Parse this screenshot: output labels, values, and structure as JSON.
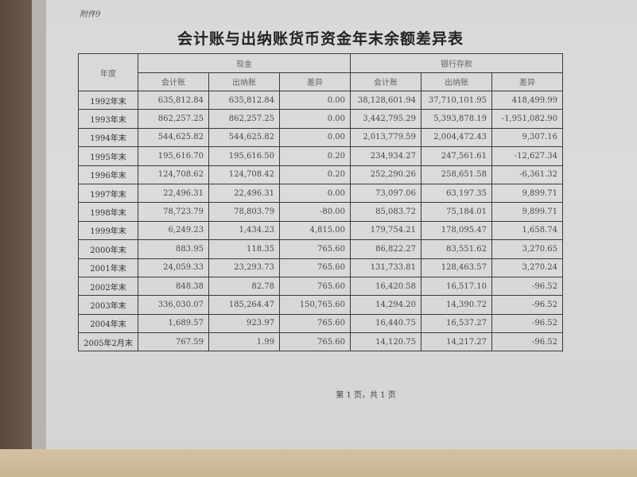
{
  "attachment_label": "附件9",
  "title": "会计账与出纳账货币资金年末余额差异表",
  "headers": {
    "year": "年度",
    "cash": "现金",
    "bank": "银行存款",
    "sub": [
      "会计账",
      "出纳账",
      "差异",
      "会计账",
      "出纳账",
      "差异"
    ]
  },
  "rows": [
    [
      "1992年末",
      "635,812.84",
      "635,812.84",
      "0.00",
      "38,128,601.94",
      "37,710,101.95",
      "418,499.99"
    ],
    [
      "1993年末",
      "862,257.25",
      "862,257.25",
      "0.00",
      "3,442,795.29",
      "5,393,878.19",
      "-1,951,082.90"
    ],
    [
      "1994年末",
      "544,625.82",
      "544,625.82",
      "0.00",
      "2,013,779.59",
      "2,004,472.43",
      "9,307.16"
    ],
    [
      "1995年末",
      "195,616.70",
      "195,616.50",
      "0.20",
      "234,934.27",
      "247,561.61",
      "-12,627.34"
    ],
    [
      "1996年末",
      "124,708.62",
      "124,708.42",
      "0.20",
      "252,290.26",
      "258,651.58",
      "-6,361.32"
    ],
    [
      "1997年末",
      "22,496.31",
      "22,496.31",
      "0.00",
      "73,097.06",
      "63,197.35",
      "9,899.71"
    ],
    [
      "1998年末",
      "78,723.79",
      "78,803.79",
      "-80.00",
      "85,083.72",
      "75,184.01",
      "9,899.71"
    ],
    [
      "1999年末",
      "6,249.23",
      "1,434.23",
      "4,815.00",
      "179,754.21",
      "178,095.47",
      "1,658.74"
    ],
    [
      "2000年末",
      "883.95",
      "118.35",
      "765.60",
      "86,822.27",
      "83,551.62",
      "3,270.65"
    ],
    [
      "2001年末",
      "24,059.33",
      "23,293.73",
      "765.60",
      "131,733.81",
      "128,463.57",
      "3,270.24"
    ],
    [
      "2002年末",
      "848.38",
      "82.78",
      "765.60",
      "16,420.58",
      "16,517.10",
      "-96.52"
    ],
    [
      "2003年末",
      "336,030.07",
      "185,264.47",
      "150,765.60",
      "14,294.20",
      "14,390.72",
      "-96.52"
    ],
    [
      "2004年末",
      "1,689.57",
      "923.97",
      "765.60",
      "16,440.75",
      "16,537.27",
      "-96.52"
    ],
    [
      "2005年2月末",
      "767.59",
      "1.99",
      "765.60",
      "14,120.75",
      "14,217.27",
      "-96.52"
    ]
  ],
  "footer": "第 1 页，共 1 页"
}
